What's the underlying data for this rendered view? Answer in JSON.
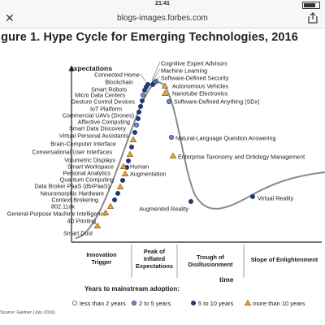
{
  "status_bar": {
    "time": "21:41"
  },
  "browser": {
    "url": "blogs-images.forbes.com"
  },
  "figure_title": "igure 1. Hype Cycle for Emerging Technologies, 2016",
  "chart_data": {
    "type": "line",
    "title": "Hype Cycle for Emerging Technologies, 2016",
    "ylabel": "expectations",
    "xlabel": "time",
    "phases": [
      "Innovation Trigger",
      "Peak of Inflated Expectations",
      "Trough of Disillusionment",
      "Slope of Enlightenment"
    ],
    "adoption_legend_title": "Years to mainstream adoption:",
    "adoption_categories": [
      {
        "key": "lt2",
        "label": "less than 2 years"
      },
      {
        "key": "2to5",
        "label": "2 to 5 years"
      },
      {
        "key": "5to10",
        "label": "5 to 10 years"
      },
      {
        "key": "gt10",
        "label": "more than 10 years"
      }
    ],
    "technologies": [
      {
        "name": "Cognitive Expert Advisors",
        "adoption": "2to5"
      },
      {
        "name": "Machine Learning",
        "adoption": "2to5"
      },
      {
        "name": "Software-Defined Security",
        "adoption": "5to10"
      },
      {
        "name": "Autonomous Vehicles",
        "adoption": "gt10"
      },
      {
        "name": "Nanotube Electronics",
        "adoption": "gt10"
      },
      {
        "name": "Software-Defined Anything (SDx)",
        "adoption": "2to5"
      },
      {
        "name": "Connected Home",
        "adoption": "5to10"
      },
      {
        "name": "Blockchain",
        "adoption": "5to10"
      },
      {
        "name": "Smart Robots",
        "adoption": "5to10"
      },
      {
        "name": "Micro Data Centers",
        "adoption": "2to5"
      },
      {
        "name": "Gesture Control Devices",
        "adoption": "5to10"
      },
      {
        "name": "IoT Platform",
        "adoption": "5to10"
      },
      {
        "name": "Commercial UAVs (Drones)",
        "adoption": "5to10"
      },
      {
        "name": "Affective Computing",
        "adoption": "5to10"
      },
      {
        "name": "Smart Data Discovery",
        "adoption": "2to5"
      },
      {
        "name": "Virtual Personal Assistants",
        "adoption": "5to10"
      },
      {
        "name": "Brain-Computer Interface",
        "adoption": "gt10"
      },
      {
        "name": "Conversational User Interfaces",
        "adoption": "5to10"
      },
      {
        "name": "Volumetric Displays",
        "adoption": "gt10"
      },
      {
        "name": "Smart Workspace",
        "adoption": "5to10"
      },
      {
        "name": "Personal Analytics",
        "adoption": "5to10"
      },
      {
        "name": "Quantum Computing",
        "adoption": "gt10"
      },
      {
        "name": "Data Broker PaaS (dbrPaaS)",
        "adoption": "5to10"
      },
      {
        "name": "Neuromorphic Hardware",
        "adoption": "gt10"
      },
      {
        "name": "Context Brokering",
        "adoption": "5to10"
      },
      {
        "name": "802.11ax",
        "adoption": "5to10"
      },
      {
        "name": "General-Purpose Machine Intelligence",
        "adoption": "gt10"
      },
      {
        "name": "4D Printing",
        "adoption": "gt10"
      },
      {
        "name": "Smart Dust",
        "adoption": "gt10"
      },
      {
        "name": "Human Augmentation",
        "adoption": "gt10"
      },
      {
        "name": "Natural-Language Question Answering",
        "adoption": "2to5"
      },
      {
        "name": "Enterprise Taxonomy and Ontology Management",
        "adoption": "gt10"
      },
      {
        "name": "Augmented Reality",
        "adoption": "5to10"
      },
      {
        "name": "Virtual Reality",
        "adoption": "5to10"
      }
    ],
    "source": "Source: Gartner (July 2016)",
    "colors": {
      "curve": "#7a7a7a",
      "dark_dot": "#1f3b73",
      "light_dot": "#ffffff",
      "triangle_fill": "#e8a838",
      "triangle_stroke": "#8a5a10"
    }
  }
}
